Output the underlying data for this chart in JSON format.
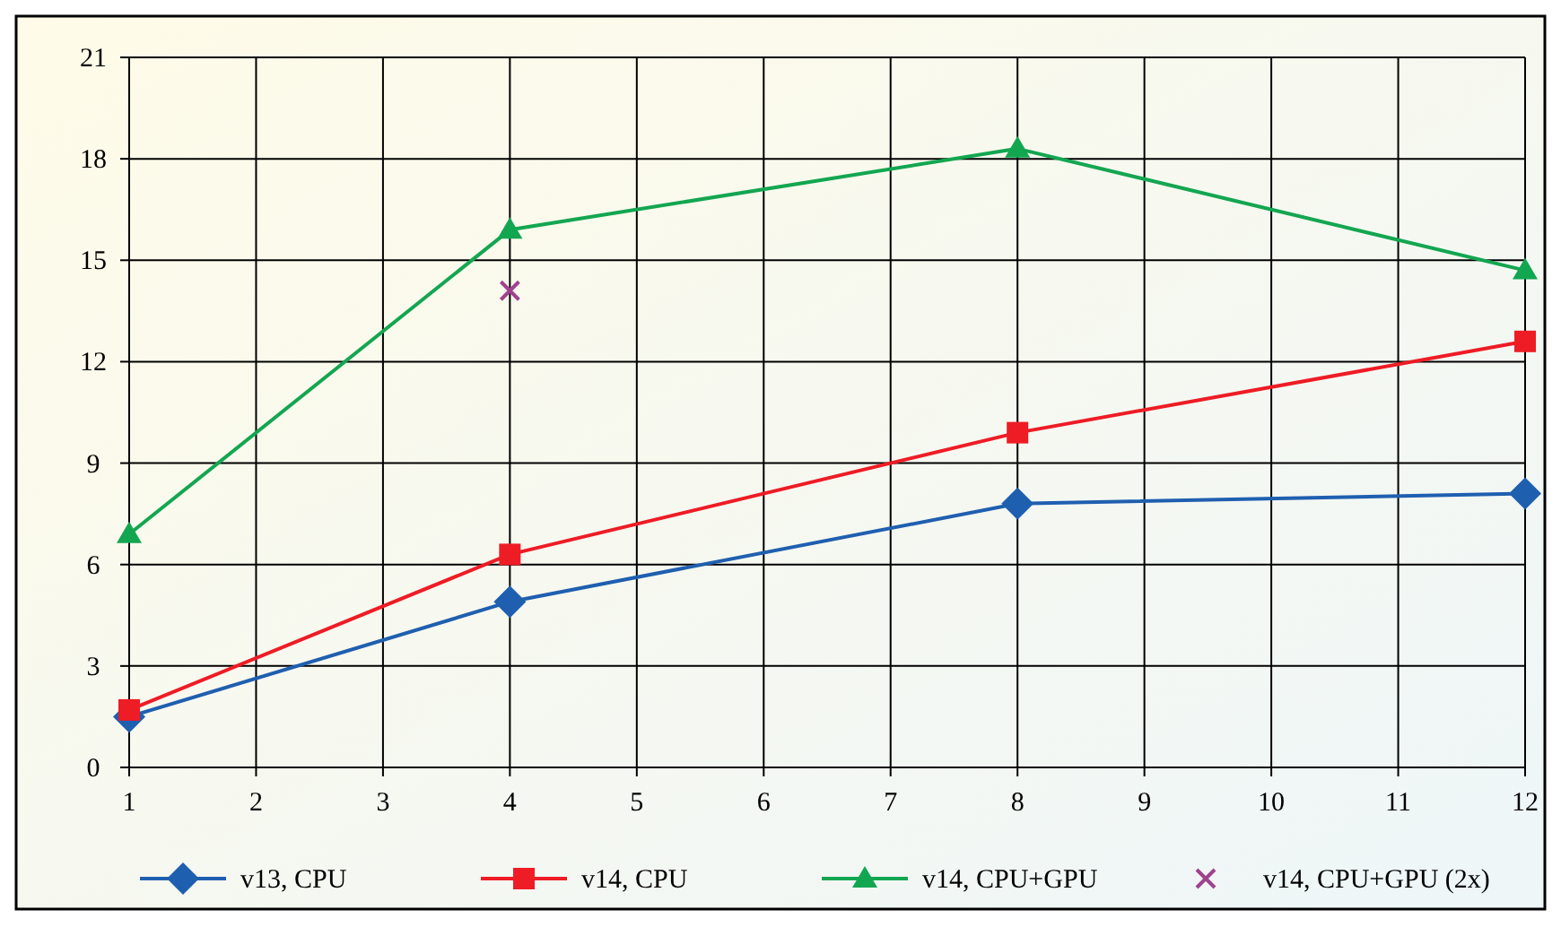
{
  "chart_data": {
    "type": "line",
    "x": [
      1,
      4,
      8,
      12
    ],
    "xlim": [
      1,
      12
    ],
    "xticks": [
      1,
      2,
      3,
      4,
      5,
      6,
      7,
      8,
      9,
      10,
      11,
      12
    ],
    "ylim": [
      0,
      21
    ],
    "yticks": [
      0,
      3,
      6,
      9,
      12,
      15,
      18,
      21
    ],
    "grid": true,
    "legend": "bottom",
    "series": [
      {
        "name": "v13, CPU",
        "color": "#1f5fb0",
        "marker": "diamond",
        "values": [
          1.5,
          4.9,
          7.8,
          8.1
        ]
      },
      {
        "name": "v14, CPU",
        "color": "#ee1c25",
        "marker": "square",
        "values": [
          1.7,
          6.3,
          9.9,
          12.6
        ]
      },
      {
        "name": "v14, CPU+GPU",
        "color": "#13a651",
        "marker": "triangle",
        "values": [
          6.9,
          15.9,
          18.3,
          14.7
        ]
      },
      {
        "name": "v14, CPU+GPU (2x)",
        "color": "#a0418f",
        "marker": "cross",
        "type": "scatter",
        "x": [
          4
        ],
        "values": [
          14.1
        ]
      }
    ]
  }
}
